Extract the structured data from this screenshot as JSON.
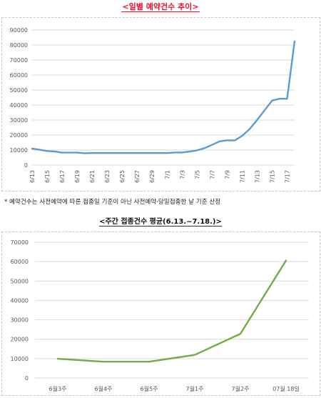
{
  "titles": {
    "chart1": "<일별 예약건수 추이>",
    "note": "* 예약건수는 사전예약에 따른 접종일 기준이 아닌 사전예약·당일접종한 날 기준 산정",
    "chart2": "<주간 접종건수 평균(6.13.~7.18.)>"
  },
  "chart_data": [
    {
      "type": "line",
      "title": "<일별 예약건수 추이>",
      "xlabel": "",
      "ylabel": "",
      "ylim": [
        0,
        90000
      ],
      "y_ticks": [
        "0",
        "10000",
        "20000",
        "30000",
        "40000",
        "50000",
        "60000",
        "70000",
        "80000",
        "90000"
      ],
      "x_tick_labels": [
        "6/13",
        "6/15",
        "6/17",
        "6/19",
        "6/21",
        "6/23",
        "6/25",
        "6/27",
        "6/29",
        "7/1",
        "7/3",
        "7/5",
        "7/7",
        "7/9",
        "7/11",
        "7/13",
        "7/15",
        "7/17"
      ],
      "x": [
        "6/13",
        "6/14",
        "6/15",
        "6/16",
        "6/17",
        "6/18",
        "6/19",
        "6/20",
        "6/21",
        "6/22",
        "6/23",
        "6/24",
        "6/25",
        "6/26",
        "6/27",
        "6/28",
        "6/29",
        "6/30",
        "7/1",
        "7/2",
        "7/3",
        "7/4",
        "7/5",
        "7/6",
        "7/7",
        "7/8",
        "7/9",
        "7/10",
        "7/11",
        "7/12",
        "7/13",
        "7/14",
        "7/15",
        "7/16",
        "7/17",
        "7/18"
      ],
      "series": [
        {
          "name": "",
          "color": "#5b9bd5",
          "values": [
            11000,
            10200,
            9400,
            9000,
            8300,
            8300,
            8300,
            7900,
            8000,
            8000,
            8000,
            8000,
            8000,
            8000,
            8000,
            8000,
            8000,
            8000,
            8000,
            8400,
            8400,
            9000,
            9800,
            11300,
            13500,
            15800,
            16500,
            16400,
            19500,
            24000,
            30000,
            36500,
            43000,
            44200,
            44200,
            82500
          ]
        }
      ],
      "grid": true
    },
    {
      "type": "line",
      "title": "<주간 접종건수 평균(6.13.~7.18.)>",
      "xlabel": "",
      "ylabel": "",
      "ylim": [
        0,
        70000
      ],
      "y_ticks": [
        "0",
        "10000",
        "20000",
        "30000",
        "40000",
        "50000",
        "60000",
        "70000"
      ],
      "categories": [
        "6월3주",
        "6월4주",
        "6월5주",
        "7월1주",
        "7월2주",
        "07월 18일"
      ],
      "series": [
        {
          "name": "",
          "color": "#70ad47",
          "values": [
            9900,
            8400,
            8400,
            11900,
            22800,
            60600
          ]
        }
      ],
      "grid": true
    }
  ]
}
